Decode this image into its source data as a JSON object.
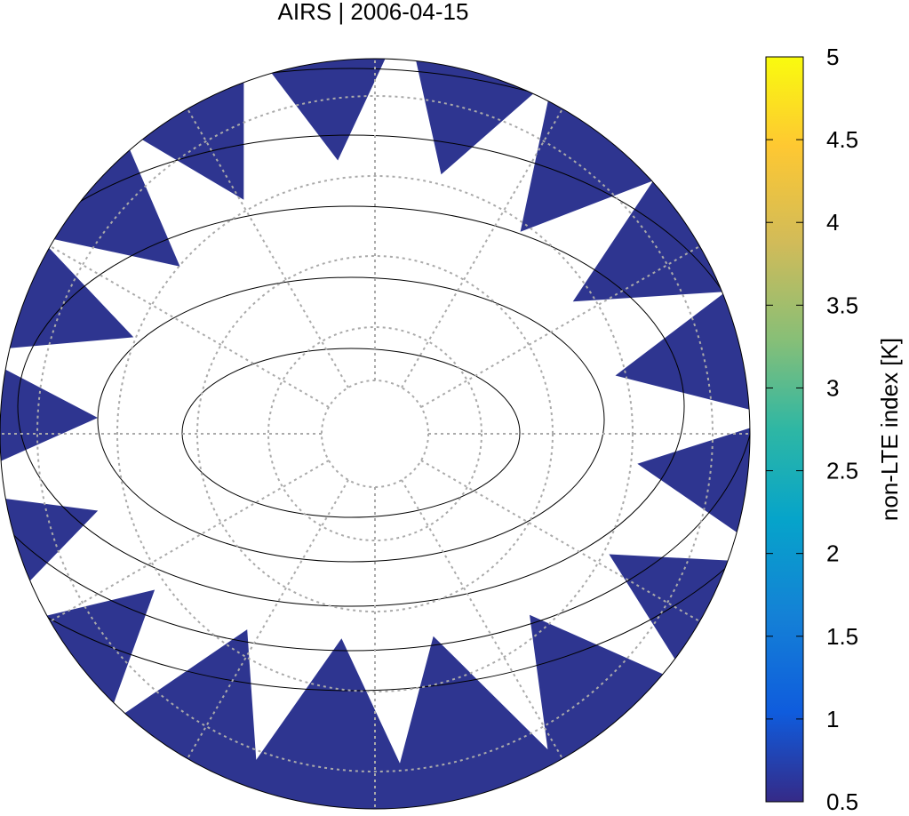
{
  "chart_data": {
    "type": "map",
    "title": "AIRS | 2006-04-15",
    "colorbar": {
      "label": "non-LTE index [K]",
      "lim": [
        0.5,
        5
      ],
      "ticks": [
        0.5,
        1,
        1.5,
        2,
        2.5,
        3,
        3.5,
        4,
        4.5,
        5
      ]
    }
  }
}
